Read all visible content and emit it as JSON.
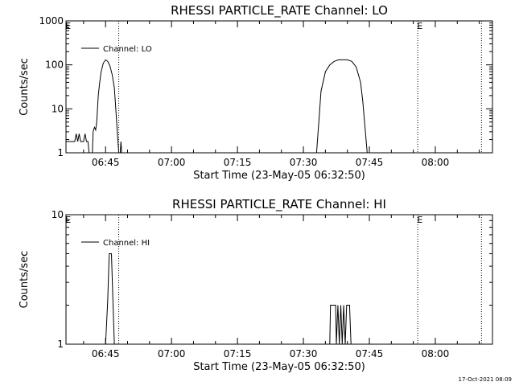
{
  "footer_timestamp": "17-Oct-2021 08:09",
  "colors": {
    "background": "#ffffff",
    "foreground": "#000000"
  },
  "chart_data": [
    {
      "type": "line",
      "title": "RHESSI PARTICLE_RATE Channel: LO",
      "xlabel": "Start Time (23-May-05 06:32:50)",
      "ylabel": "Counts/sec",
      "y_scale": "log",
      "ylim": [
        1,
        1000
      ],
      "ytick_labels": [
        "1",
        "10",
        "100",
        "1000"
      ],
      "xlim": [
        "06:36:00",
        "08:13:00"
      ],
      "xtick_labels": [
        "06:45",
        "07:00",
        "07:15",
        "07:30",
        "07:45",
        "08:00"
      ],
      "grid": false,
      "legend": {
        "position": "top-left"
      },
      "flag_labels": [
        {
          "text": "E",
          "x": "06:36:30"
        },
        {
          "text": "E",
          "x": "07:56:30"
        }
      ],
      "vlines": [
        "06:48:00",
        "07:56:00",
        "08:10:30"
      ],
      "series": [
        {
          "name": "Channel: LO",
          "segments": [
            [
              [
                "06:36:00",
                1.8
              ],
              [
                "06:38:00",
                1.8
              ],
              [
                "06:38:20",
                2.7
              ],
              [
                "06:38:40",
                1.8
              ],
              [
                "06:39:00",
                2.7
              ],
              [
                "06:39:20",
                1.8
              ],
              [
                "06:40:00",
                1.8
              ],
              [
                "06:40:20",
                2.7
              ],
              [
                "06:40:40",
                1.8
              ],
              [
                "06:41:00",
                1.8
              ],
              [
                "06:41:15",
                1.0
              ]
            ],
            [
              [
                "06:42:00",
                1.0
              ],
              [
                "06:42:10",
                3.0
              ],
              [
                "06:42:20",
                3.5
              ],
              [
                "06:42:30",
                3.8
              ],
              [
                "06:42:45",
                3.3
              ],
              [
                "06:43:00",
                5
              ],
              [
                "06:43:20",
                20
              ],
              [
                "06:43:40",
                40
              ],
              [
                "06:44:00",
                70
              ],
              [
                "06:44:30",
                110
              ],
              [
                "06:45:00",
                130
              ],
              [
                "06:45:30",
                120
              ],
              [
                "06:46:00",
                95
              ],
              [
                "06:46:30",
                60
              ],
              [
                "06:47:00",
                30
              ],
              [
                "06:47:20",
                10
              ],
              [
                "06:47:40",
                3
              ],
              [
                "06:48:00",
                1.0
              ]
            ],
            [
              [
                "06:48:20",
                1.0
              ],
              [
                "06:48:30",
                1.8
              ],
              [
                "06:48:40",
                1.0
              ]
            ],
            [
              [
                "07:33:00",
                1.0
              ],
              [
                "07:33:30",
                5
              ],
              [
                "07:34:00",
                25
              ],
              [
                "07:35:00",
                70
              ],
              [
                "07:36:00",
                100
              ],
              [
                "07:37:00",
                120
              ],
              [
                "07:38:00",
                130
              ],
              [
                "07:39:00",
                130
              ],
              [
                "07:40:00",
                130
              ],
              [
                "07:41:00",
                120
              ],
              [
                "07:42:00",
                90
              ],
              [
                "07:43:00",
                40
              ],
              [
                "07:43:30",
                15
              ],
              [
                "07:44:00",
                4
              ],
              [
                "07:44:30",
                1.0
              ]
            ]
          ]
        }
      ]
    },
    {
      "type": "line",
      "title": "RHESSI PARTICLE_RATE Channel: HI",
      "xlabel": "Start Time (23-May-05 06:32:50)",
      "ylabel": "Counts/sec",
      "y_scale": "log",
      "ylim": [
        1,
        10
      ],
      "ytick_labels": [
        "1",
        "10"
      ],
      "xlim": [
        "06:36:00",
        "08:13:00"
      ],
      "xtick_labels": [
        "06:45",
        "07:00",
        "07:15",
        "07:30",
        "07:45",
        "08:00"
      ],
      "grid": false,
      "legend": {
        "position": "top-left"
      },
      "flag_labels": [
        {
          "text": "E",
          "x": "06:36:30"
        },
        {
          "text": "E",
          "x": "07:56:30"
        }
      ],
      "vlines": [
        "06:48:00",
        "07:56:00",
        "08:10:30"
      ],
      "series": [
        {
          "name": "Channel: HI",
          "segments": [
            [
              [
                "06:45:00",
                1.0
              ],
              [
                "06:45:30",
                2.2
              ],
              [
                "06:45:50",
                5.0
              ],
              [
                "06:46:20",
                5.0
              ],
              [
                "06:46:40",
                2.2
              ],
              [
                "06:47:00",
                1.0
              ]
            ],
            [
              [
                "07:36:00",
                1.0
              ],
              [
                "07:36:10",
                2.0
              ],
              [
                "07:37:20",
                2.0
              ],
              [
                "07:37:30",
                1.0
              ],
              [
                "07:37:50",
                2.0
              ],
              [
                "07:38:10",
                1.0
              ],
              [
                "07:38:30",
                2.0
              ],
              [
                "07:38:50",
                1.0
              ],
              [
                "07:39:10",
                2.0
              ],
              [
                "07:39:30",
                1.0
              ],
              [
                "07:39:50",
                2.0
              ],
              [
                "07:40:30",
                2.0
              ],
              [
                "07:40:50",
                1.0
              ]
            ]
          ]
        }
      ]
    }
  ]
}
